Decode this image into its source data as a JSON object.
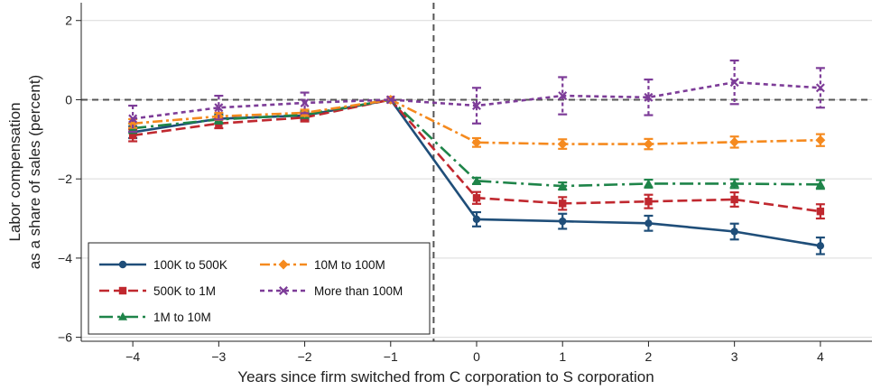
{
  "chart_data": {
    "type": "line",
    "title": "",
    "xlabel": "Years since firm switched from C corporation to S corporation",
    "ylabel_lines": [
      "Labor compensation",
      "as a share of sales (percent)"
    ],
    "x": [
      -4,
      -3,
      -2,
      -1,
      0,
      1,
      2,
      3,
      4
    ],
    "xlim": [
      -4.6,
      4.6
    ],
    "ylim": [
      -6.1,
      2.45
    ],
    "yticks": [
      -6,
      -4,
      -2,
      0,
      2
    ],
    "ytick_labels": [
      "−6",
      "−4",
      "−2",
      "0",
      "2"
    ],
    "xticks": [
      -4,
      -3,
      -2,
      -1,
      0,
      1,
      2,
      3,
      4
    ],
    "xtick_labels": [
      "−4",
      "−3",
      "−2",
      "−1",
      "0",
      "1",
      "2",
      "3",
      "4"
    ],
    "grid": true,
    "reference_lines": {
      "horizontal_y": 0,
      "vertical_x": -0.5
    },
    "legend_position": "bottom-left",
    "series": [
      {
        "name": "100K to 500K",
        "color": "#1f4e79",
        "marker": "circle",
        "dash": "",
        "values": [
          -0.82,
          -0.48,
          -0.4,
          0,
          -3.02,
          -3.07,
          -3.12,
          -3.33,
          -3.69
        ],
        "errors": [
          0.15,
          0.12,
          0.1,
          0,
          0.18,
          0.19,
          0.19,
          0.2,
          0.21
        ]
      },
      {
        "name": "500K to 1M",
        "color": "#c0282f",
        "marker": "square",
        "dash": "11,5",
        "values": [
          -0.9,
          -0.6,
          -0.45,
          0,
          -2.48,
          -2.62,
          -2.57,
          -2.52,
          -2.82
        ],
        "errors": [
          0.15,
          0.12,
          0.1,
          0,
          0.15,
          0.16,
          0.17,
          0.18,
          0.18
        ]
      },
      {
        "name": "1M to 10M",
        "color": "#1e8449",
        "marker": "triangle",
        "dash": "15,5,3,5",
        "values": [
          -0.72,
          -0.5,
          -0.38,
          0,
          -2.05,
          -2.18,
          -2.12,
          -2.12,
          -2.14
        ],
        "errors": [
          0.12,
          0.1,
          0.08,
          0,
          0.08,
          0.09,
          0.1,
          0.11,
          0.11
        ]
      },
      {
        "name": "10M to 100M",
        "color": "#f58a1f",
        "marker": "diamond",
        "dash": "11,4,3,4",
        "values": [
          -0.6,
          -0.42,
          -0.33,
          0,
          -1.08,
          -1.12,
          -1.12,
          -1.07,
          -1.02
        ],
        "errors": [
          0.11,
          0.09,
          0.08,
          0,
          0.11,
          0.12,
          0.13,
          0.14,
          0.15
        ]
      },
      {
        "name": "More than 100M",
        "color": "#7d3c98",
        "marker": "x",
        "dash": "5,4",
        "values": [
          -0.48,
          -0.2,
          -0.08,
          0,
          -0.15,
          0.1,
          0.06,
          0.44,
          0.3
        ],
        "errors": [
          0.33,
          0.3,
          0.26,
          0,
          0.45,
          0.47,
          0.45,
          0.55,
          0.5
        ]
      }
    ],
    "legend_layout": [
      [
        "100K to 500K",
        "10M to 100M"
      ],
      [
        "500K to 1M",
        "More than 100M"
      ],
      [
        "1M to 10M"
      ]
    ]
  }
}
